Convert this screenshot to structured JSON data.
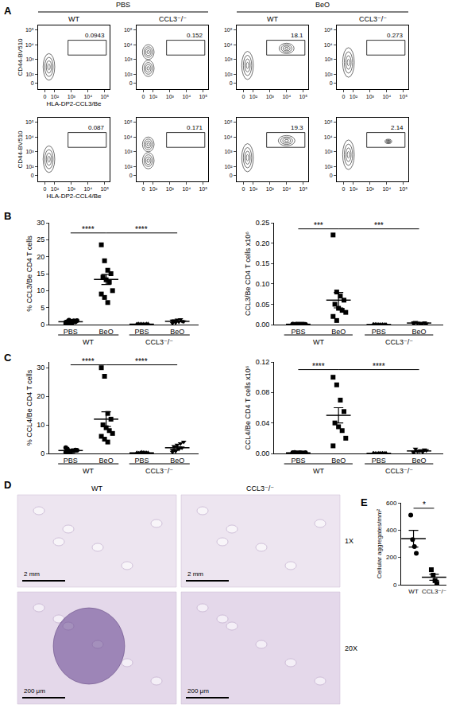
{
  "panel_labels": [
    "A",
    "B",
    "C",
    "D",
    "E"
  ],
  "headers": [
    {
      "text": "PBS",
      "columns": [
        0,
        1
      ]
    },
    {
      "text": "BeO",
      "columns": [
        2,
        3
      ]
    }
  ],
  "chart_data": [
    {
      "type": "flow",
      "title": "WT",
      "xlabel": "HLA-DP2-CCL3/Be",
      "ylabel": "CD44-BV510",
      "xlim": [
        -0.4,
        3.9
      ],
      "ylim": [
        -0.4,
        3.9
      ],
      "xticks": [
        {
          "value": 0,
          "label": "0"
        },
        {
          "value": 0.6,
          "label": "10²"
        },
        {
          "value": 1.6,
          "label": "10³"
        },
        {
          "value": 2.6,
          "label": "10⁴"
        },
        {
          "value": 3.6,
          "label": "10⁵"
        }
      ],
      "yticks": [
        {
          "value": 0,
          "label": "0"
        },
        {
          "value": 0.6,
          "label": "10²"
        },
        {
          "value": 1.6,
          "label": "10³"
        },
        {
          "value": 2.6,
          "label": "10⁴"
        },
        {
          "value": 3.6,
          "label": "10⁵"
        }
      ],
      "populations": [
        {
          "x": 0.25,
          "y": 1.1,
          "sx": 0.35,
          "sy": 0.9
        }
      ],
      "gate": {
        "x": [
          1.4,
          3.7
        ],
        "y": [
          1.9,
          2.9
        ],
        "percent": 0.0943
      }
    },
    {
      "type": "flow",
      "title": "CCL3⁻/⁻",
      "xlim": [
        -0.4,
        3.9
      ],
      "ylim": [
        -0.4,
        3.9
      ],
      "xticks": [
        {
          "value": 0,
          "label": "0"
        },
        {
          "value": 0.6,
          "label": "10²"
        },
        {
          "value": 1.6,
          "label": "10³"
        },
        {
          "value": 2.6,
          "label": "10⁴"
        },
        {
          "value": 3.6,
          "label": "10⁵"
        }
      ],
      "yticks": [
        {
          "value": 0,
          "label": "0"
        },
        {
          "value": 0.6,
          "label": "10²"
        },
        {
          "value": 1.6,
          "label": "10³"
        },
        {
          "value": 2.6,
          "label": "10⁴"
        },
        {
          "value": 3.6,
          "label": "10⁵"
        }
      ],
      "populations": [
        {
          "x": 0.3,
          "y": 1.0,
          "sx": 0.35,
          "sy": 0.55
        },
        {
          "x": 0.3,
          "y": 2.1,
          "sx": 0.35,
          "sy": 0.5
        }
      ],
      "gate": {
        "x": [
          1.4,
          3.7
        ],
        "y": [
          1.9,
          2.9
        ],
        "percent": 0.152
      }
    },
    {
      "type": "flow",
      "title": "WT",
      "xlim": [
        -0.4,
        3.9
      ],
      "ylim": [
        -0.4,
        3.9
      ],
      "xticks": [
        {
          "value": 0,
          "label": "0"
        },
        {
          "value": 0.6,
          "label": "10²"
        },
        {
          "value": 1.6,
          "label": "10³"
        },
        {
          "value": 2.6,
          "label": "10⁴"
        },
        {
          "value": 3.6,
          "label": "10⁵"
        }
      ],
      "yticks": [
        {
          "value": 0,
          "label": "0"
        },
        {
          "value": 0.6,
          "label": "10²"
        },
        {
          "value": 1.6,
          "label": "10³"
        },
        {
          "value": 2.6,
          "label": "10⁴"
        },
        {
          "value": 3.6,
          "label": "10⁵"
        }
      ],
      "populations": [
        {
          "x": 0.25,
          "y": 1.2,
          "sx": 0.35,
          "sy": 0.95
        },
        {
          "x": 2.6,
          "y": 2.35,
          "sx": 0.45,
          "sy": 0.35
        }
      ],
      "gate": {
        "x": [
          1.4,
          3.7
        ],
        "y": [
          1.9,
          2.9
        ],
        "percent": 18.1
      }
    },
    {
      "type": "flow",
      "title": "CCL3⁻/⁻",
      "xlim": [
        -0.4,
        3.9
      ],
      "ylim": [
        -0.4,
        3.9
      ],
      "xticks": [
        {
          "value": 0,
          "label": "0"
        },
        {
          "value": 0.6,
          "label": "10²"
        },
        {
          "value": 1.6,
          "label": "10³"
        },
        {
          "value": 2.6,
          "label": "10⁴"
        },
        {
          "value": 3.6,
          "label": "10⁵"
        }
      ],
      "yticks": [
        {
          "value": 0,
          "label": "0"
        },
        {
          "value": 0.6,
          "label": "10²"
        },
        {
          "value": 1.6,
          "label": "10³"
        },
        {
          "value": 2.6,
          "label": "10⁴"
        },
        {
          "value": 3.6,
          "label": "10⁵"
        }
      ],
      "populations": [
        {
          "x": 0.3,
          "y": 1.4,
          "sx": 0.35,
          "sy": 1.0
        }
      ],
      "gate": {
        "x": [
          1.4,
          3.7
        ],
        "y": [
          1.9,
          2.9
        ],
        "percent": 0.273
      }
    },
    {
      "type": "flow",
      "xlabel": "HLA-DP2-CCL4/Be",
      "ylabel": "CD44-BV510",
      "xlim": [
        -0.4,
        3.9
      ],
      "ylim": [
        -0.4,
        3.9
      ],
      "xticks": [
        {
          "value": 0,
          "label": "0"
        },
        {
          "value": 0.6,
          "label": "10²"
        },
        {
          "value": 1.6,
          "label": "10³"
        },
        {
          "value": 2.6,
          "label": "10⁴"
        },
        {
          "value": 3.6,
          "label": "10⁵"
        }
      ],
      "yticks": [
        {
          "value": 0,
          "label": "0"
        },
        {
          "value": 0.6,
          "label": "10²"
        },
        {
          "value": 1.6,
          "label": "10³"
        },
        {
          "value": 2.6,
          "label": "10⁴"
        },
        {
          "value": 3.6,
          "label": "10⁵"
        }
      ],
      "populations": [
        {
          "x": 0.25,
          "y": 1.1,
          "sx": 0.35,
          "sy": 0.9
        }
      ],
      "gate": {
        "x": [
          1.4,
          3.7
        ],
        "y": [
          1.9,
          2.9
        ],
        "percent": 0.087
      }
    },
    {
      "type": "flow",
      "xlim": [
        -0.4,
        3.9
      ],
      "ylim": [
        -0.4,
        3.9
      ],
      "xticks": [
        {
          "value": 0,
          "label": "0"
        },
        {
          "value": 0.6,
          "label": "10²"
        },
        {
          "value": 1.6,
          "label": "10³"
        },
        {
          "value": 2.6,
          "label": "10⁴"
        },
        {
          "value": 3.6,
          "label": "10⁵"
        }
      ],
      "yticks": [
        {
          "value": 0,
          "label": "0"
        },
        {
          "value": 0.6,
          "label": "10²"
        },
        {
          "value": 1.6,
          "label": "10³"
        },
        {
          "value": 2.6,
          "label": "10⁴"
        },
        {
          "value": 3.6,
          "label": "10⁵"
        }
      ],
      "populations": [
        {
          "x": 0.3,
          "y": 1.0,
          "sx": 0.35,
          "sy": 0.55
        },
        {
          "x": 0.3,
          "y": 2.1,
          "sx": 0.35,
          "sy": 0.5
        }
      ],
      "gate": {
        "x": [
          1.4,
          3.7
        ],
        "y": [
          1.9,
          2.9
        ],
        "percent": 0.171
      }
    },
    {
      "type": "flow",
      "xlim": [
        -0.4,
        3.9
      ],
      "ylim": [
        -0.4,
        3.9
      ],
      "xticks": [
        {
          "value": 0,
          "label": "0"
        },
        {
          "value": 0.6,
          "label": "10²"
        },
        {
          "value": 1.6,
          "label": "10³"
        },
        {
          "value": 2.6,
          "label": "10⁴"
        },
        {
          "value": 3.6,
          "label": "10⁵"
        }
      ],
      "yticks": [
        {
          "value": 0,
          "label": "0"
        },
        {
          "value": 0.6,
          "label": "10²"
        },
        {
          "value": 1.6,
          "label": "10³"
        },
        {
          "value": 2.6,
          "label": "10⁴"
        },
        {
          "value": 3.6,
          "label": "10⁵"
        }
      ],
      "populations": [
        {
          "x": 0.25,
          "y": 1.2,
          "sx": 0.35,
          "sy": 0.95
        },
        {
          "x": 2.6,
          "y": 2.35,
          "sx": 0.5,
          "sy": 0.35
        }
      ],
      "gate": {
        "x": [
          1.4,
          3.7
        ],
        "y": [
          1.9,
          2.9
        ],
        "percent": 19.3
      }
    },
    {
      "type": "flow",
      "xlim": [
        -0.4,
        3.9
      ],
      "ylim": [
        -0.4,
        3.9
      ],
      "xticks": [
        {
          "value": 0,
          "label": "0"
        },
        {
          "value": 0.6,
          "label": "10²"
        },
        {
          "value": 1.6,
          "label": "10³"
        },
        {
          "value": 2.6,
          "label": "10⁴"
        },
        {
          "value": 3.6,
          "label": "10⁵"
        }
      ],
      "yticks": [
        {
          "value": 0,
          "label": "0"
        },
        {
          "value": 0.6,
          "label": "10²"
        },
        {
          "value": 1.6,
          "label": "10³"
        },
        {
          "value": 2.6,
          "label": "10⁴"
        },
        {
          "value": 3.6,
          "label": "10⁵"
        }
      ],
      "populations": [
        {
          "x": 0.3,
          "y": 1.4,
          "sx": 0.35,
          "sy": 1.0
        },
        {
          "x": 2.7,
          "y": 2.3,
          "sx": 0.2,
          "sy": 0.15
        }
      ],
      "gate": {
        "x": [
          1.4,
          3.7
        ],
        "y": [
          1.9,
          2.9
        ],
        "percent": 2.14
      }
    },
    {
      "type": "scatter",
      "ylabel": "% CCL3/Be CD4 T cells",
      "categories": [
        "PBS",
        "BeO",
        "PBS",
        "BeO"
      ],
      "groups": [
        {
          "label": "WT",
          "categories": [
            0,
            1
          ]
        },
        {
          "label": "CCL3⁻/⁻",
          "categories": [
            2,
            3
          ]
        }
      ],
      "markers": [
        "circle",
        "square",
        "triangle-up",
        "triangle-down"
      ],
      "color": "#000000",
      "values": [
        [
          0.3,
          0.5,
          0.6,
          0.8,
          0.9,
          1.0,
          1.1,
          1.2,
          0.7,
          1.3
        ],
        [
          23.5,
          18.8,
          16.0,
          15.0,
          14.0,
          13.2,
          12.5,
          10.0,
          9.0,
          8.0,
          6.5
        ],
        [
          0.05,
          0.1,
          0.1,
          0.15,
          0.2,
          0.1,
          0.05,
          0.2,
          0.1
        ],
        [
          0.4,
          0.6,
          0.8,
          1.0,
          1.2,
          1.4,
          1.5,
          0.9,
          1.1,
          0.7
        ]
      ],
      "mean": [
        0.84,
        13.3,
        0.12,
        0.96
      ],
      "sem": [
        0.1,
        1.5,
        0.02,
        0.11
      ],
      "ylim": [
        0,
        30
      ],
      "yticks": [
        0,
        5,
        10,
        15,
        20,
        25,
        30
      ],
      "significance": [
        {
          "from": 0,
          "to": 1,
          "y": 27,
          "label": "****"
        },
        {
          "from": 1,
          "to": 3,
          "y": 27,
          "label": "****"
        }
      ]
    },
    {
      "type": "scatter",
      "ylabel": "CCL3/Be CD4 T cells x10⁶",
      "categories": [
        "PBS",
        "BeO",
        "PBS",
        "BeO"
      ],
      "groups": [
        {
          "label": "WT",
          "categories": [
            0,
            1
          ]
        },
        {
          "label": "CCL3⁻/⁻",
          "categories": [
            2,
            3
          ]
        }
      ],
      "markers": [
        "circle",
        "square",
        "triangle-up",
        "triangle-down"
      ],
      "color": "#000000",
      "values": [
        [
          0.0005,
          0.001,
          0.0008,
          0.0012,
          0.0006,
          0.0009,
          0.001,
          0.0007,
          0.0011,
          0.0004
        ],
        [
          0.22,
          0.08,
          0.07,
          0.06,
          0.05,
          0.04,
          0.035,
          0.03,
          0.02,
          0.01
        ],
        [
          0.0002,
          0.0003,
          0.0001,
          0.0002,
          0.0003,
          0.0002,
          0.0001,
          0.0002,
          0.0003
        ],
        [
          0.002,
          0.004,
          0.003,
          0.005,
          0.006,
          0.004,
          0.003,
          0.002,
          0.005
        ]
      ],
      "mean": [
        0.0008,
        0.06,
        0.0002,
        0.0038
      ],
      "sem": [
        0.0001,
        0.019,
        3e-05,
        0.0005
      ],
      "ylim": [
        0,
        0.25
      ],
      "yticks": [
        {
          "value": 0,
          "label": "0.00"
        },
        {
          "value": 0.05,
          "label": "0.05"
        },
        {
          "value": 0.1,
          "label": "0.10"
        },
        {
          "value": 0.15,
          "label": "0.15"
        },
        {
          "value": 0.2,
          "label": "0.20"
        },
        {
          "value": 0.25,
          "label": "0.25"
        }
      ],
      "significance": [
        {
          "from": 0,
          "to": 1,
          "y": 0.235,
          "label": "***"
        },
        {
          "from": 1,
          "to": 3,
          "y": 0.235,
          "label": "***"
        }
      ]
    },
    {
      "type": "scatter",
      "ylabel": "% CCL4/Be CD4 T cells",
      "categories": [
        "PBS",
        "BeO",
        "PBS",
        "BeO"
      ],
      "groups": [
        {
          "label": "WT",
          "categories": [
            0,
            1
          ]
        },
        {
          "label": "CCL3⁻/⁻",
          "categories": [
            2,
            3
          ]
        }
      ],
      "markers": [
        "circle",
        "square",
        "triangle-up",
        "triangle-down"
      ],
      "color": "#000000",
      "values": [
        [
          0.5,
          0.8,
          1.0,
          1.2,
          1.5,
          0.6,
          0.9,
          1.1,
          2.0,
          0.7
        ],
        [
          30,
          27,
          14,
          12,
          10,
          9,
          8,
          7,
          6,
          5,
          4
        ],
        [
          0.1,
          0.2,
          0.3,
          0.2,
          0.1,
          0.4,
          0.3,
          0.2,
          0.2
        ],
        [
          0.5,
          1.0,
          1.5,
          2.0,
          2.5,
          3.0,
          3.5,
          4.0,
          1.2,
          0.8
        ]
      ],
      "mean": [
        1.03,
        12,
        0.22,
        2.0
      ],
      "sem": [
        0.14,
        2.6,
        0.03,
        0.37
      ],
      "ylim": [
        0,
        32
      ],
      "yticks": [
        0,
        10,
        20,
        30
      ],
      "significance": [
        {
          "from": 0,
          "to": 1,
          "y": 31,
          "label": "****"
        },
        {
          "from": 1,
          "to": 3,
          "y": 31,
          "label": "****"
        }
      ]
    },
    {
      "type": "scatter",
      "ylabel": "CCL4/Be CD4 T cells x10⁶",
      "categories": [
        "PBS",
        "BeO",
        "PBS",
        "BeO"
      ],
      "groups": [
        {
          "label": "WT",
          "categories": [
            0,
            1
          ]
        },
        {
          "label": "CCL3⁻/⁻",
          "categories": [
            2,
            3
          ]
        }
      ],
      "markers": [
        "circle",
        "square",
        "triangle-up",
        "triangle-down"
      ],
      "color": "#000000",
      "values": [
        [
          0.0005,
          0.0008,
          0.001,
          0.0006,
          0.0012,
          0.0009,
          0.0007,
          0.0011,
          0.001
        ],
        [
          0.1,
          0.09,
          0.07,
          0.055,
          0.04,
          0.035,
          0.03,
          0.02,
          0.01
        ],
        [
          0.0002,
          0.0001,
          0.0003,
          0.0002,
          0.0001,
          0.0002,
          0.0003,
          0.0002,
          0.0001
        ],
        [
          0.002,
          0.003,
          0.004,
          0.005,
          0.006,
          0.003,
          0.002,
          0.004,
          0.001
        ]
      ],
      "mean": [
        0.00087,
        0.05,
        0.00019,
        0.0033
      ],
      "sem": [
        8e-05,
        0.01,
        3e-05,
        0.0005
      ],
      "ylim": [
        0,
        0.12
      ],
      "yticks": [
        {
          "value": 0,
          "label": "0.00"
        },
        {
          "value": 0.04,
          "label": "0.04"
        },
        {
          "value": 0.08,
          "label": "0.08"
        },
        {
          "value": 0.12,
          "label": "0.12"
        }
      ],
      "significance": [
        {
          "from": 0,
          "to": 1,
          "y": 0.11,
          "label": "****"
        },
        {
          "from": 1,
          "to": 3,
          "y": 0.11,
          "label": "****"
        }
      ]
    },
    {
      "type": "scatter",
      "ylabel": "Cellular aggregates/mm²",
      "categories": [
        "WT",
        "CCL3⁻/⁻"
      ],
      "markers": [
        "circle",
        "square"
      ],
      "color": "#000000",
      "values": [
        [
          510,
          330,
          280,
          230
        ],
        [
          110,
          70,
          30,
          10
        ]
      ],
      "mean": [
        337.5,
        55
      ],
      "sem": [
        61,
        22
      ],
      "ylim": [
        0,
        600
      ],
      "yticks": [
        0,
        200,
        400,
        600
      ],
      "significance": [
        {
          "from": 0,
          "to": 1,
          "y": 560,
          "label": "*"
        }
      ]
    }
  ],
  "images": {
    "columns": [
      "WT",
      "CCL3⁻/⁻"
    ],
    "rows": [
      "1X",
      "20X"
    ],
    "scale_bars": [
      "2 mm",
      "200 μm"
    ]
  }
}
